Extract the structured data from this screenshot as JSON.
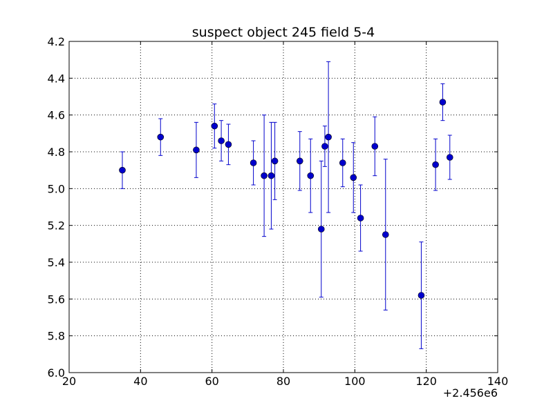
{
  "chart_data": {
    "type": "scatter",
    "title": "suspect object 245 field 5-4",
    "xlabel": "",
    "ylabel": "",
    "x_offset_label": "+2.456e6",
    "xlim": [
      20,
      140
    ],
    "ylim": [
      4.2,
      6.0
    ],
    "y_inverted": true,
    "grid": true,
    "x_ticks": [
      "20",
      "40",
      "60",
      "80",
      "100",
      "120",
      "140"
    ],
    "y_ticks": [
      "4.2",
      "4.4",
      "4.6",
      "4.8",
      "5.0",
      "5.2",
      "5.4",
      "5.6",
      "5.8",
      "6.0"
    ],
    "marker_color": "#0000cc",
    "points": [
      {
        "x": 34.9,
        "y": 4.9,
        "err": 0.1
      },
      {
        "x": 45.6,
        "y": 4.72,
        "err": 0.1
      },
      {
        "x": 55.6,
        "y": 4.79,
        "err": 0.15
      },
      {
        "x": 60.7,
        "y": 4.66,
        "err": 0.12
      },
      {
        "x": 62.6,
        "y": 4.74,
        "err": 0.11
      },
      {
        "x": 64.6,
        "y": 4.76,
        "err": 0.11
      },
      {
        "x": 71.6,
        "y": 4.86,
        "err": 0.12
      },
      {
        "x": 74.6,
        "y": 4.93,
        "err": 0.33
      },
      {
        "x": 76.6,
        "y": 4.93,
        "err": 0.29
      },
      {
        "x": 77.6,
        "y": 4.85,
        "err": 0.21
      },
      {
        "x": 84.6,
        "y": 4.85,
        "err": 0.16
      },
      {
        "x": 87.6,
        "y": 4.93,
        "err": 0.2
      },
      {
        "x": 90.6,
        "y": 5.22,
        "err": 0.37
      },
      {
        "x": 91.6,
        "y": 4.77,
        "err": 0.11
      },
      {
        "x": 92.6,
        "y": 4.72,
        "err": 0.41
      },
      {
        "x": 96.6,
        "y": 4.86,
        "err": 0.13
      },
      {
        "x": 99.6,
        "y": 4.94,
        "err": 0.19
      },
      {
        "x": 101.6,
        "y": 5.16,
        "err": 0.18
      },
      {
        "x": 105.6,
        "y": 4.77,
        "err": 0.16
      },
      {
        "x": 108.6,
        "y": 5.25,
        "err": 0.41
      },
      {
        "x": 118.6,
        "y": 5.58,
        "err": 0.29
      },
      {
        "x": 122.6,
        "y": 4.87,
        "err": 0.14
      },
      {
        "x": 124.6,
        "y": 4.53,
        "err": 0.1
      },
      {
        "x": 126.6,
        "y": 4.83,
        "err": 0.12
      }
    ]
  }
}
